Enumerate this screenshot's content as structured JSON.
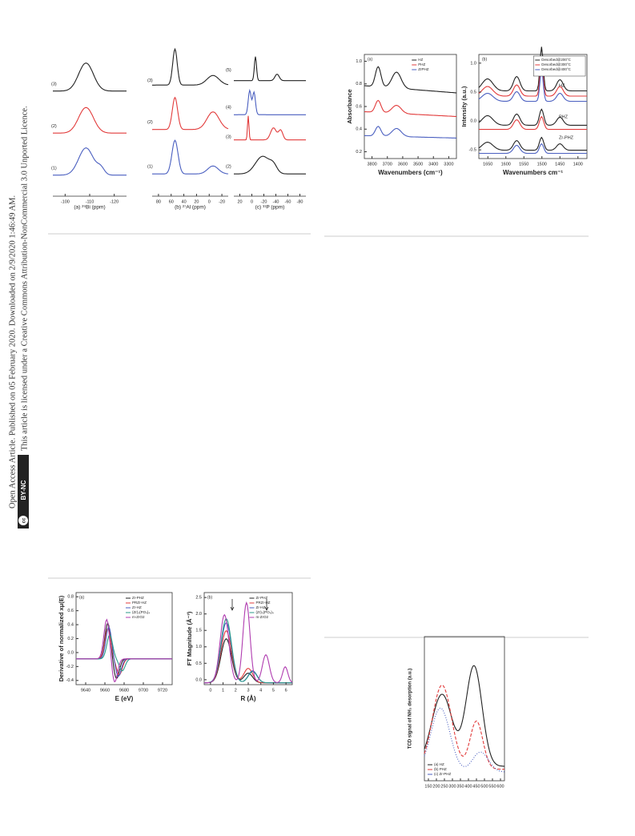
{
  "side_note": {
    "line_1": "Open Access Article. Published on 05 February 2020. Downloaded on 2/9/2020 1:46:49 AM.",
    "line_2": "This article is licensed under a Creative Commons Attribution-NonCommercial 3.0 Unported Licence.",
    "cc": "cc",
    "badge": "BY-NC"
  },
  "figure_1": {
    "panel_a": {
      "x_label": "(a) ²⁹Bi (ppm)",
      "xticks": [
        "-100",
        "-110",
        "-120"
      ],
      "trace_labels": [
        "(3)",
        "(2)",
        "(1)"
      ]
    },
    "panel_b": {
      "x_label": "(b) ²⁷Al (ppm)",
      "xticks": [
        "80",
        "60",
        "40",
        "20",
        "0",
        "-20"
      ],
      "trace_labels": [
        "(3)",
        "(2)",
        "(1)"
      ]
    },
    "panel_c": {
      "x_label": "(c) ³¹P (ppm)",
      "xticks": [
        "20",
        "0",
        "-20",
        "-40",
        "-60",
        "-80"
      ],
      "trace_labels": [
        "(5)",
        "(4)",
        "(3)",
        "(2)"
      ]
    }
  },
  "figure_2": {
    "panel_a": {
      "title": "(a)",
      "y_label": "Absorbance",
      "x_label": "Wavenumbers (cm⁻¹)",
      "yticks": [
        "1.0",
        "0.8",
        "0.6",
        "0.4",
        "0.2"
      ],
      "xticks": [
        "3800",
        "3700",
        "3600",
        "3500",
        "3400",
        "3300"
      ],
      "legend": [
        "HZ",
        "PHZ",
        "ZrPHZ"
      ]
    },
    "panel_b": {
      "title": "(b)",
      "y_label": "Intensity (a.u.)",
      "x_label": "Wavenumbers cm⁻¹",
      "yticks": [
        "1.0",
        "0.5",
        "0.0",
        "-0.5"
      ],
      "xticks": [
        "1650",
        "1600",
        "1550",
        "1500",
        "1450",
        "1400"
      ],
      "legend": [
        "Desorbed@200°C",
        "Desorbed@300°C",
        "Desorbed@400°C"
      ],
      "trace_labels": [
        "HZ",
        "PHZ",
        "Zr-PHZ"
      ]
    }
  },
  "figure_3": {
    "panel_a": {
      "title": "(a)",
      "y_label": "Derivative of normalized xμ(E)",
      "x_label": "E (eV)",
      "yticks": [
        "0.8",
        "0.6",
        "0.4",
        "0.2",
        "0.0",
        "-0.2",
        "-0.4"
      ],
      "xticks": [
        "9640",
        "9660",
        "9680",
        "9700",
        "9720"
      ],
      "legend": [
        "Zr-PHZ",
        "PRZr-HZ",
        "Zr-HZ",
        "(Zr)₃(PO₄)₄",
        "m-ZrO2"
      ]
    },
    "panel_b": {
      "title": "(b)",
      "y_label": "FT Magnitude (Å⁻³)",
      "x_label": "R (Å)",
      "yticks": [
        "2.5",
        "2.0",
        "1.5",
        "1.0",
        "0.5",
        "0.0"
      ],
      "xticks": [
        "0",
        "1",
        "2",
        "3",
        "4",
        "5",
        "6"
      ],
      "legend": [
        "Zr-PHZ",
        "PRZr-HZ",
        "Zr-HZ",
        "(Zr)₃(PO₄)₄",
        "m-ZrO2"
      ]
    }
  },
  "figure_4": {
    "panel_a": {
      "y_label": "TCD signal of NH₃ desorption (a.u.)",
      "xticks": [
        "150",
        "200",
        "250",
        "300",
        "350",
        "400",
        "450",
        "500",
        "550",
        "600"
      ],
      "legend": [
        "(a) HZ",
        "(b) PHZ",
        "(c) Zr-PHZ"
      ]
    }
  }
}
